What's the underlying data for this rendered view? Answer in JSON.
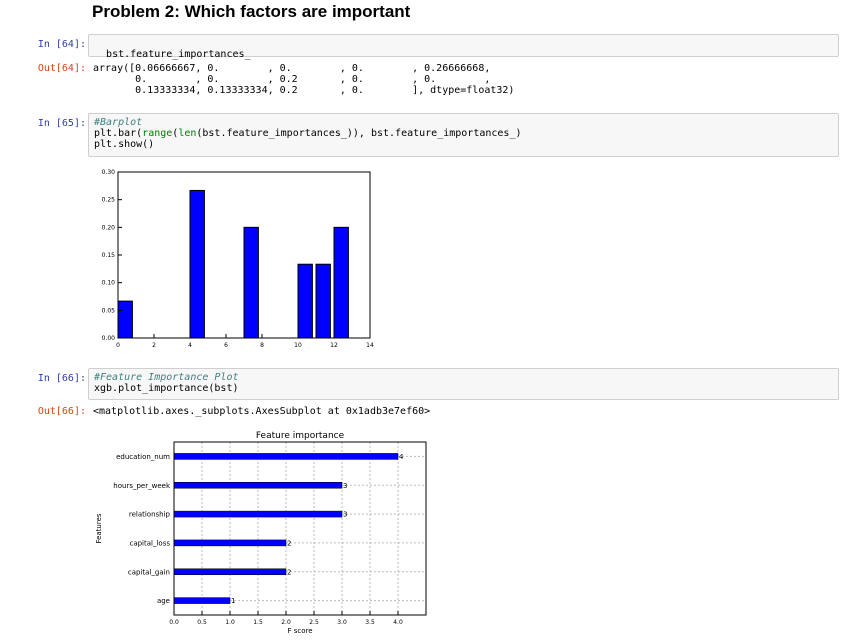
{
  "heading": "Problem 2: Which factors are important",
  "cells": {
    "c64": {
      "in_prompt": "In [64]:",
      "code": "bst.feature_importances_",
      "out_prompt": "Out[64]:",
      "output_lines": [
        "array([0.06666667, 0.        , 0.        , 0.        , 0.26666668,",
        "       0.        , 0.        , 0.2       , 0.        , 0.        ,",
        "       0.13333334, 0.13333334, 0.2       , 0.        ], dtype=float32)"
      ]
    },
    "c65": {
      "in_prompt": "In [65]:",
      "comment": "#Barplot",
      "line2_a": "plt.bar(",
      "line2_b1": "range",
      "line2_c": "(",
      "line2_b2": "len",
      "line2_d": "(bst.feature_importances_)), bst.feature_importances_)",
      "line3": "plt.show()"
    },
    "c66": {
      "in_prompt": "In [66]:",
      "comment": "#Feature Importance Plot",
      "line2": "xgb.plot_importance(bst)",
      "out_prompt": "Out[66]:",
      "output": "<matplotlib.axes._subplots.AxesSubplot at 0x1adb3e7ef60>"
    }
  },
  "chart_data": [
    {
      "type": "bar",
      "x": [
        0,
        1,
        2,
        3,
        4,
        5,
        6,
        7,
        8,
        9,
        10,
        11,
        12,
        13
      ],
      "values": [
        0.06666667,
        0,
        0,
        0,
        0.26666668,
        0,
        0,
        0.2,
        0,
        0,
        0.13333334,
        0.13333334,
        0.2,
        0
      ],
      "xlim": [
        0,
        14
      ],
      "ylim": [
        0,
        0.3
      ],
      "xticks": [
        "0",
        "2",
        "4",
        "6",
        "8",
        "10",
        "12",
        "14"
      ],
      "yticks": [
        "0.00",
        "0.05",
        "0.10",
        "0.15",
        "0.20",
        "0.25",
        "0.30"
      ],
      "bar_color": "#0000ff",
      "grid": false
    },
    {
      "type": "bar",
      "orientation": "horizontal",
      "title": "Feature importance",
      "xlabel": "F score",
      "ylabel": "Features",
      "categories": [
        "age",
        "capital_gain",
        "capital_loss",
        "relationship",
        "hours_per_week",
        "education_num"
      ],
      "values": [
        1,
        2,
        2,
        3,
        3,
        4
      ],
      "value_labels": [
        "1",
        "2",
        "2",
        "3",
        "3",
        "4"
      ],
      "xlim": [
        0,
        4.5
      ],
      "xticks": [
        "0.0",
        "0.5",
        "1.0",
        "1.5",
        "2.0",
        "2.5",
        "3.0",
        "3.5",
        "4.0"
      ],
      "bar_color": "#0000ff",
      "grid": true
    }
  ]
}
